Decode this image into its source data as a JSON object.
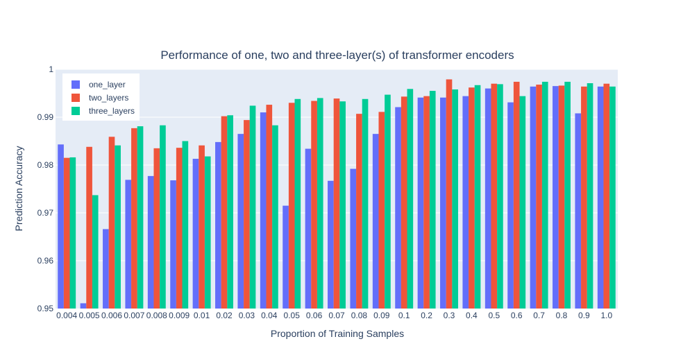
{
  "chart_data": {
    "type": "bar",
    "title": "Performance of one, two and three-layer(s) of transformer encoders",
    "xlabel": "Proportion of Training Samples",
    "ylabel": "Prediction Accuracy",
    "ylim": [
      0.95,
      1.0
    ],
    "yticks": [
      "0.95",
      "0.96",
      "0.97",
      "0.98",
      "0.99",
      "1"
    ],
    "ytick_values": [
      0.95,
      0.96,
      0.97,
      0.98,
      0.99,
      1.0
    ],
    "grid": true,
    "legend_position": "top-left",
    "categories": [
      "0.004",
      "0.005",
      "0.006",
      "0.007",
      "0.008",
      "0.009",
      "0.01",
      "0.02",
      "0.03",
      "0.04",
      "0.05",
      "0.06",
      "0.07",
      "0.08",
      "0.09",
      "0.1",
      "0.2",
      "0.3",
      "0.4",
      "0.5",
      "0.6",
      "0.7",
      "0.8",
      "0.9",
      "1.0"
    ],
    "series": [
      {
        "name": "one_layer",
        "color": "#636efa",
        "values": [
          0.9843,
          0.9511,
          0.9666,
          0.9769,
          0.9777,
          0.9768,
          0.9813,
          0.9848,
          0.9865,
          0.991,
          0.9715,
          0.9834,
          0.9767,
          0.9792,
          0.9865,
          0.9921,
          0.9941,
          0.9941,
          0.9944,
          0.996,
          0.9931,
          0.9964,
          0.9965,
          0.9908,
          0.9964
        ]
      },
      {
        "name": "two_layers",
        "color": "#ef553b",
        "values": [
          0.9815,
          0.9838,
          0.9859,
          0.9877,
          0.9835,
          0.9836,
          0.9841,
          0.9902,
          0.9894,
          0.9926,
          0.993,
          0.9934,
          0.9939,
          0.9907,
          0.9911,
          0.9943,
          0.9944,
          0.9979,
          0.9962,
          0.997,
          0.9974,
          0.9968,
          0.9966,
          0.9964,
          0.997
        ]
      },
      {
        "name": "three_layers",
        "color": "#00cc96",
        "values": [
          0.9816,
          0.9737,
          0.9841,
          0.9881,
          0.9883,
          0.985,
          0.9818,
          0.9904,
          0.9924,
          0.9883,
          0.9938,
          0.994,
          0.9933,
          0.9938,
          0.9947,
          0.9959,
          0.9955,
          0.9958,
          0.9967,
          0.9969,
          0.9944,
          0.9974,
          0.9974,
          0.9971,
          0.9964
        ]
      }
    ]
  },
  "colors": {
    "plot_background": "#e5ecf6",
    "grid": "#ffffff",
    "text": "#2a3f5f"
  }
}
